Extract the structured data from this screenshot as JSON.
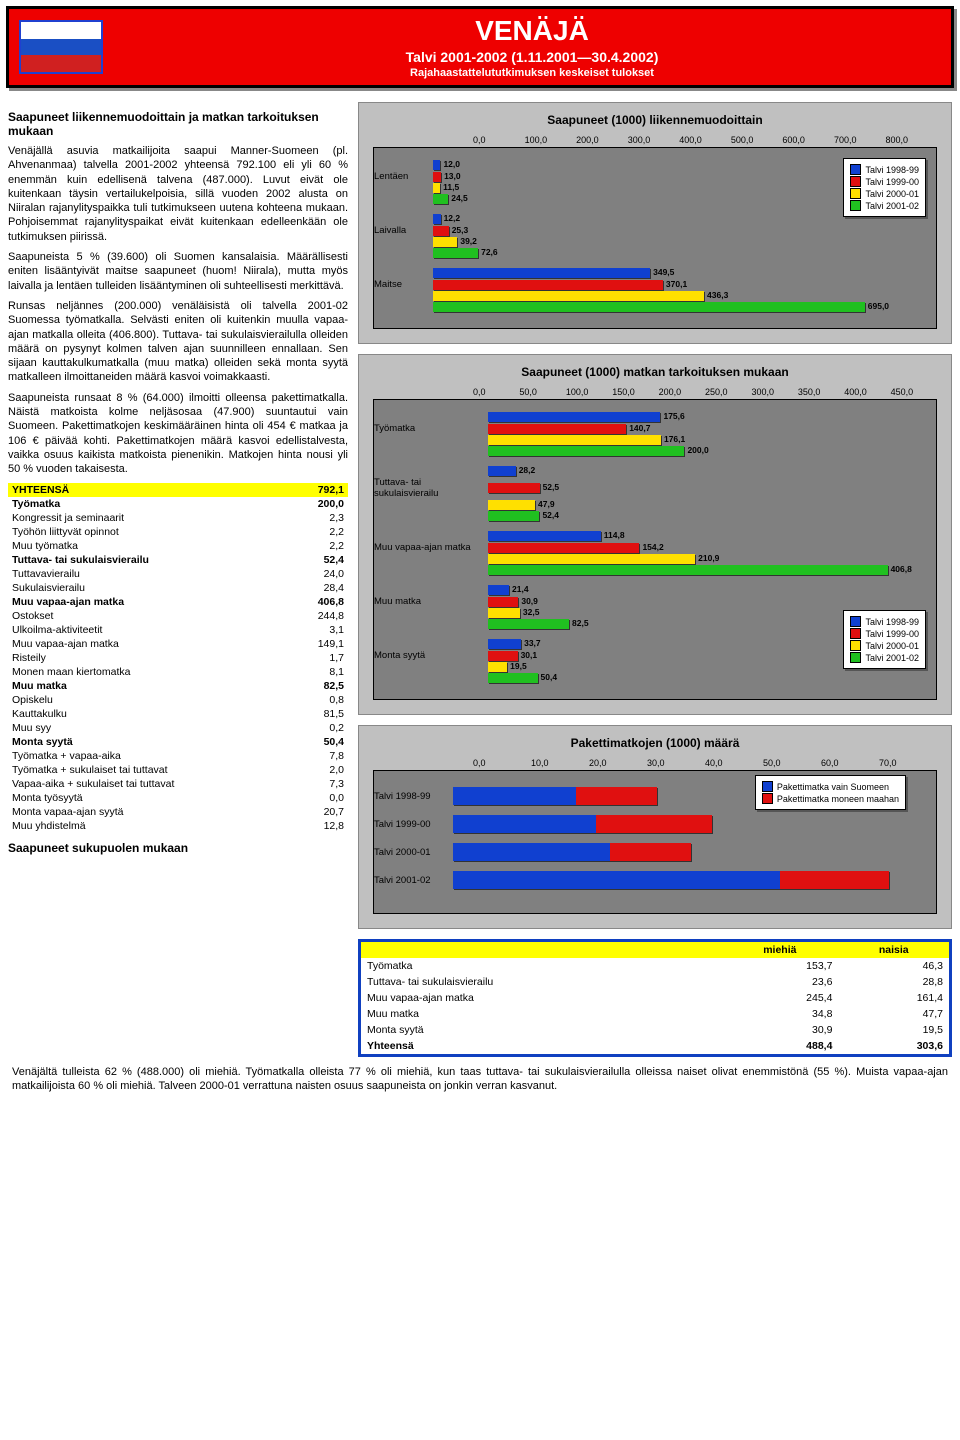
{
  "header": {
    "title": "VENÄJÄ",
    "subtitle1": "Talvi 2001-2002 (1.11.2001—30.4.2002)",
    "subtitle2": "Rajahaastattelututkimuksen keskeiset tulokset"
  },
  "left": {
    "h1": "Saapuneet liikennemuodoittain ja matkan tarkoituksen mukaan",
    "p1": "Venäjällä asuvia matkailijoita saapui Manner-Suomeen (pl. Ahvenanmaa) talvella 2001-2002 yhteensä 792.100 eli yli 60 % enemmän kuin edellisenä talvena (487.000). Luvut eivät ole kuitenkaan täysin vertailukelpoisia, sillä vuoden 2002 alusta on Niiralan rajanylityspaikka tuli tutkimukseen uutena kohteena mukaan. Pohjoisemmat rajanylityspaikat eivät kuitenkaan edelleenkään ole tutkimuksen piirissä.",
    "p2": "Saapuneista 5 % (39.600) oli Suomen kansalaisia. Määrällisesti eniten lisääntyivät maitse saapuneet (huom! Niirala), mutta myös laivalla ja lentäen tulleiden lisääntyminen oli suhteellisesti merkittävä.",
    "p3": "Runsas neljännes (200.000) venäläisistä oli talvella 2001-02 Suomessa työmatkalla. Selvästi eniten oli kuitenkin muulla vapaa-ajan matkalla olleita (406.800). Tuttava- tai sukulaisvierailulla olleiden määrä on pysynyt kolmen talven ajan suunnilleen ennallaan. Sen sijaan kauttakulkumatkalla (muu matka) olleiden sekä monta syytä matkalleen ilmoittaneiden määrä kasvoi voimakkaasti.",
    "p4": "Saapuneista runsaat 8 % (64.000) ilmoitti olleensa pakettimatkalla. Näistä matkoista kolme neljäsosaa (47.900) suuntautui vain Suomeen. Pakettimatkojen keskimääräinen hinta oli 454 € matkaa ja 106 € päivää kohti. Pakettimatkojen määrä kasvoi edellistalvesta, vaikka osuus kaikista matkoista pienenikin. Matkojen hinta nousi yli 50 % vuoden takaisesta.",
    "h2": "Saapuneet sukupuolen mukaan"
  },
  "table": {
    "rows": [
      [
        "YHTEENSÄ",
        "792,1",
        "hdr"
      ],
      [
        "Työmatka",
        "200,0",
        "bold"
      ],
      [
        "Kongressit ja seminaarit",
        "2,3",
        ""
      ],
      [
        "Työhön liittyvät opinnot",
        "2,2",
        ""
      ],
      [
        "Muu työmatka",
        "2,2",
        ""
      ],
      [
        "Tuttava- tai sukulaisvierailu",
        "52,4",
        "bold"
      ],
      [
        "Tuttavavierailu",
        "24,0",
        ""
      ],
      [
        "Sukulaisvierailu",
        "28,4",
        ""
      ],
      [
        "Muu vapaa-ajan matka",
        "406,8",
        "bold"
      ],
      [
        "Ostokset",
        "244,8",
        ""
      ],
      [
        "Ulkoilma-aktiviteetit",
        "3,1",
        ""
      ],
      [
        "Muu vapaa-ajan matka",
        "149,1",
        ""
      ],
      [
        "Risteily",
        "1,7",
        ""
      ],
      [
        "Monen maan kiertomatka",
        "8,1",
        ""
      ],
      [
        "Muu matka",
        "82,5",
        "bold"
      ],
      [
        "Opiskelu",
        "0,8",
        ""
      ],
      [
        "Kauttakulku",
        "81,5",
        ""
      ],
      [
        "Muu syy",
        "0,2",
        ""
      ],
      [
        "Monta syytä",
        "50,4",
        "bold"
      ],
      [
        "Työmatka + vapaa-aika",
        "7,8",
        ""
      ],
      [
        "Työmatka + sukulaiset tai tuttavat",
        "2,0",
        ""
      ],
      [
        "Vapaa-aika + sukulaiset tai tuttavat",
        "7,3",
        ""
      ],
      [
        "Monta työsyytä",
        "0,0",
        ""
      ],
      [
        "Monta vapaa-ajan syytä",
        "20,7",
        ""
      ],
      [
        "Muu yhdistelmä",
        "12,8",
        ""
      ]
    ]
  },
  "colors": {
    "s98": "#1040d0",
    "s99": "#e01010",
    "s00": "#ffe000",
    "s01": "#20c020",
    "grid": "#808080",
    "box": "#c0c0c0"
  },
  "legend_labels": [
    "Talvi 1998-99",
    "Talvi 1999-00",
    "Talvi 2000-01",
    "Talvi 2001-02"
  ],
  "chart1": {
    "title": "Saapuneet (1000) liikennemuodoittain",
    "max": 800,
    "ticks": [
      "0,0",
      "100,0",
      "200,0",
      "300,0",
      "400,0",
      "500,0",
      "600,0",
      "700,0",
      "800,0"
    ],
    "groups": [
      {
        "cat": "Lentäen",
        "bars": [
          [
            12.0,
            "12,0"
          ],
          [
            13.0,
            "13,0"
          ],
          [
            11.5,
            "11,5"
          ],
          [
            24.5,
            "24,5"
          ]
        ]
      },
      {
        "cat": "Laivalla",
        "bars": [
          [
            12.2,
            "12,2"
          ],
          [
            25.3,
            "25,3"
          ],
          [
            39.2,
            "39,2"
          ],
          [
            72.6,
            "72,6"
          ]
        ]
      },
      {
        "cat": "Maitse",
        "bars": [
          [
            349.5,
            "349,5"
          ],
          [
            370.1,
            "370,1"
          ],
          [
            436.3,
            "436,3"
          ],
          [
            695.0,
            "695,0"
          ]
        ]
      }
    ]
  },
  "chart2": {
    "title": "Saapuneet (1000) matkan tarkoituksen mukaan",
    "max": 450,
    "ticks": [
      "0,0",
      "50,0",
      "100,0",
      "150,0",
      "200,0",
      "250,0",
      "300,0",
      "350,0",
      "400,0",
      "450,0"
    ],
    "groups": [
      {
        "cat": "Työmatka",
        "bars": [
          [
            175.6,
            "175,6"
          ],
          [
            140.7,
            "140,7"
          ],
          [
            176.1,
            "176,1"
          ],
          [
            200.0,
            "200,0"
          ]
        ]
      },
      {
        "cat": "Tuttava- tai sukulaisvierailu",
        "bars": [
          [
            28.2,
            "28,2"
          ],
          [
            52.5,
            "52,5"
          ],
          [
            47.9,
            "47,9"
          ],
          [
            52.4,
            "52,4"
          ]
        ]
      },
      {
        "cat": "Muu vapaa-ajan matka",
        "bars": [
          [
            114.8,
            "114,8"
          ],
          [
            154.2,
            "154,2"
          ],
          [
            210.9,
            "210,9"
          ],
          [
            406.8,
            "406,8"
          ]
        ]
      },
      {
        "cat": "Muu matka",
        "bars": [
          [
            21.4,
            "21,4"
          ],
          [
            30.9,
            "30,9"
          ],
          [
            32.5,
            "32,5"
          ],
          [
            82.5,
            "82,5"
          ]
        ]
      },
      {
        "cat": "Monta syytä",
        "bars": [
          [
            33.7,
            "33,7"
          ],
          [
            30.1,
            "30,1"
          ],
          [
            19.5,
            "19,5"
          ],
          [
            50.4,
            "50,4"
          ]
        ]
      }
    ]
  },
  "chart3": {
    "title": "Pakettimatkojen (1000) määrä",
    "max": 70,
    "ticks": [
      "0,0",
      "10,0",
      "20,0",
      "30,0",
      "40,0",
      "50,0",
      "60,0",
      "70,0"
    ],
    "legend": [
      "Pakettimatka vain Suomeen",
      "Pakettimatka moneen maahan"
    ],
    "rows": [
      {
        "cat": "Talvi 1998-99",
        "a": 18,
        "b": 12
      },
      {
        "cat": "Talvi 1999-00",
        "a": 21,
        "b": 17
      },
      {
        "cat": "Talvi 2000-01",
        "a": 23,
        "b": 12
      },
      {
        "cat": "Talvi 2001-02",
        "a": 48,
        "b": 16
      }
    ]
  },
  "gender": {
    "headers": [
      "",
      "miehiä",
      "naisia"
    ],
    "rows": [
      [
        "Työmatka",
        "153,7",
        "46,3"
      ],
      [
        "Tuttava- tai sukulaisvierailu",
        "23,6",
        "28,8"
      ],
      [
        "Muu vapaa-ajan matka",
        "245,4",
        "161,4"
      ],
      [
        "Muu matka",
        "34,8",
        "47,7"
      ],
      [
        "Monta syytä",
        "30,9",
        "19,5"
      ],
      [
        "Yhteensä",
        "488,4",
        "303,6"
      ]
    ]
  },
  "footer": "Venäjältä tulleista 62 % (488.000) oli miehiä. Työmatkalla olleista 77 % oli miehiä, kun taas tuttava- tai sukulaisvierailulla olleissa naiset olivat enemmistönä (55 %). Muista vapaa-ajan matkailijoista 60 % oli miehiä. Talveen 2000-01 verrattuna naisten osuus saapuneista on jonkin verran kasvanut."
}
